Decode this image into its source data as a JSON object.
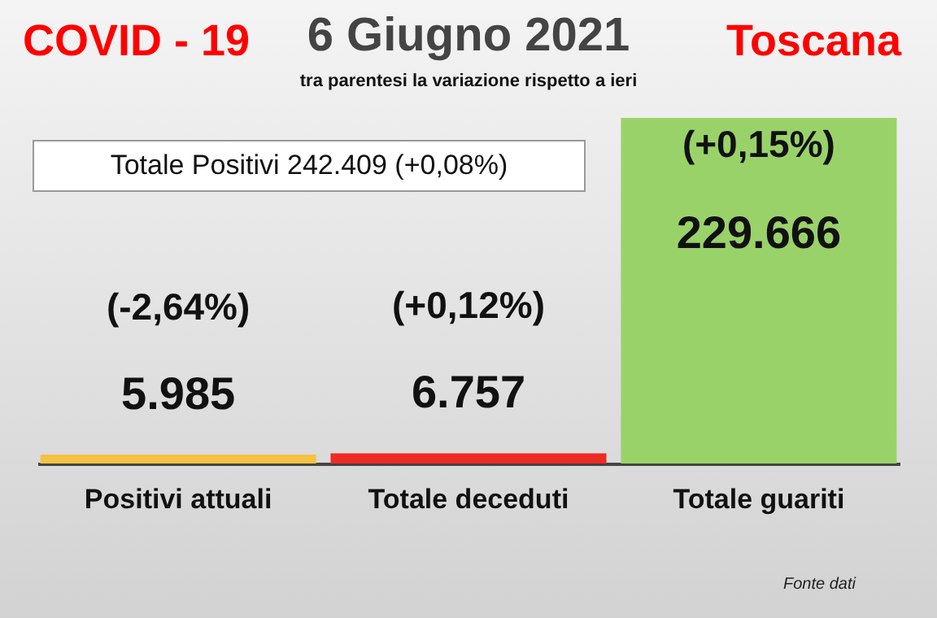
{
  "chart_data": {
    "type": "bar",
    "title": "6 Giugno 2021",
    "subtitle": "tra parentesi la variazione rispetto a ieri",
    "categories": [
      "Positivi attuali",
      "Totale deceduti",
      "Totale guariti"
    ],
    "values": [
      5985,
      6757,
      229666
    ],
    "colors": [
      "#f5c242",
      "#ee2a24",
      "#9ad26a"
    ],
    "value_labels": [
      "5.985",
      "6.757",
      "229.666"
    ],
    "annotations": [
      {
        "text": "COVID - 19"
      },
      {
        "text": "Toscana"
      },
      {
        "text": "Totale Positivi 242.409 (+0,08%)"
      },
      {
        "text": "Fonte dati"
      },
      {
        "text": "(-2,64%)"
      },
      {
        "text": "(+0,12%)"
      },
      {
        "text": "(+0,15%)"
      }
    ]
  }
}
